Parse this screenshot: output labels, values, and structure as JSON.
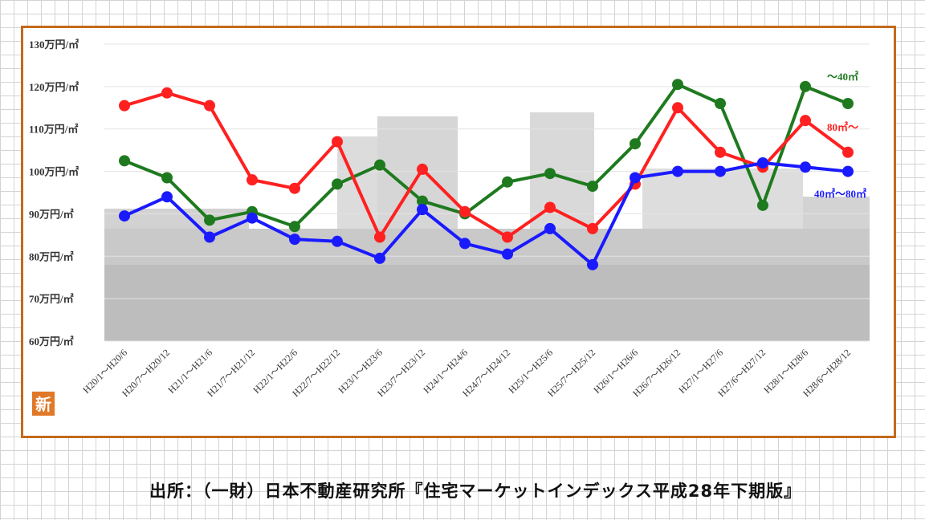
{
  "colors": {
    "frame": "#c46a1a",
    "stamp": "#e07828",
    "tick_text": "#333333"
  },
  "badge": {
    "text": "新"
  },
  "source": "出所：（一財）日本不動産研究所『住宅マーケットインデックス平成28年下期版』",
  "chart_data": {
    "type": "line",
    "title": "",
    "xlabel": "",
    "ylabel": "",
    "ylim": [
      60,
      130
    ],
    "grid": true,
    "legend": "inline-right",
    "yticks": [
      "60万円/㎡",
      "70万円/㎡",
      "80万円/㎡",
      "90万円/㎡",
      "100万円/㎡",
      "110万円/㎡",
      "120万円/㎡",
      "130万円/㎡"
    ],
    "categories": [
      "H20/1～H20/6",
      "H20/7～H20/12",
      "H21/1～H21/6",
      "H21/7～H21/12",
      "H22/1～H22/6",
      "H22/7～H22/12",
      "H23/1～H23/6",
      "H23/7～H23/12",
      "H24/1～H24/6",
      "H24/7～H24/12",
      "H25/1～H25/6",
      "H25/7～H25/12",
      "H26/1～H26/6",
      "H26/7～H26/12",
      "H27/1～H27/6",
      "H27/6～H27/12",
      "H28/1～H28/6",
      "H28/6～H28/12"
    ],
    "series": [
      {
        "name": "～40㎡",
        "color": "#1f7a1f",
        "values": [
          102.5,
          98.5,
          88.5,
          90.5,
          87.0,
          97.0,
          101.5,
          93.0,
          90.0,
          97.5,
          99.5,
          96.5,
          106.5,
          120.5,
          116.0,
          92.0,
          120.0,
          116.0
        ]
      },
      {
        "name": "80㎡～",
        "color": "#ff2020",
        "values": [
          115.5,
          118.5,
          115.5,
          98.0,
          96.0,
          107.0,
          84.5,
          100.5,
          90.5,
          84.5,
          91.5,
          86.5,
          97.0,
          115.0,
          104.5,
          101.0,
          112.0,
          104.5
        ]
      },
      {
        "name": "40㎡～80㎡",
        "color": "#1a1aff",
        "values": [
          89.5,
          94.0,
          84.5,
          89.0,
          84.0,
          83.5,
          79.5,
          91.0,
          83.0,
          80.5,
          86.5,
          78.0,
          98.5,
          100.0,
          100.0,
          102.0,
          101.0,
          100.0
        ]
      }
    ]
  }
}
